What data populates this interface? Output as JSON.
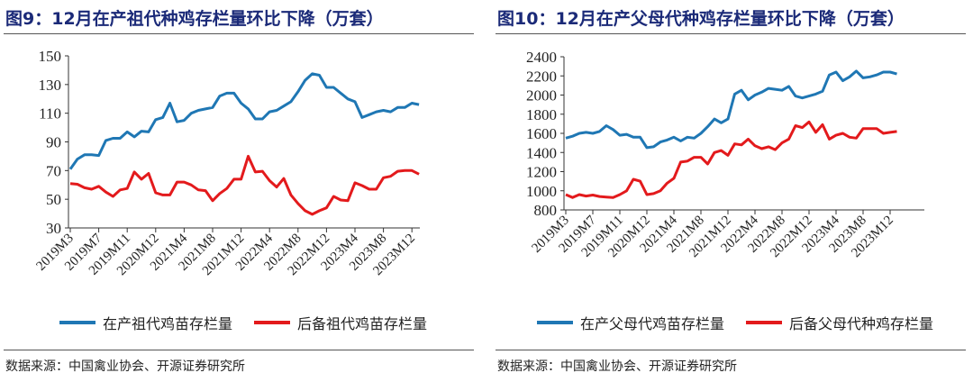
{
  "chart_data": [
    {
      "type": "line",
      "title": "图9：12月在产祖代种鸡存栏量环比下降（万套）",
      "source": "数据来源：中国禽业协会、开源证券研究所",
      "ylim": [
        30,
        150
      ],
      "yticks": [
        30,
        50,
        70,
        90,
        110,
        130,
        150
      ],
      "xtick_labels": [
        "2019M3",
        "2019M7",
        "2019M11",
        "2020M12",
        "2021M4",
        "2021M8",
        "2021M12",
        "2022M4",
        "2022M8",
        "2022M12",
        "2023M4",
        "2023M8",
        "2023M12"
      ],
      "legend_position": "bottom",
      "series": [
        {
          "name": "在产祖代鸡苗存栏量",
          "color": "#1f77b4",
          "values": [
            71,
            78,
            81,
            81,
            80.5,
            91,
            92.5,
            92.5,
            97,
            93.5,
            97.5,
            97,
            105.5,
            107,
            117,
            104,
            105,
            110,
            112,
            113,
            114,
            122,
            124,
            124,
            117,
            113,
            106,
            106,
            111,
            112,
            115,
            118,
            125,
            133,
            137.5,
            136.5,
            128,
            128,
            124,
            120,
            118,
            107,
            109,
            111,
            112,
            111,
            114,
            114,
            117,
            116
          ]
        },
        {
          "name": "后备祖代鸡苗存栏量",
          "color": "#e31a1c",
          "values": [
            61,
            60.5,
            58,
            57,
            59,
            55,
            52,
            56.5,
            57.5,
            69,
            64,
            68,
            54.5,
            53,
            53,
            62,
            62,
            60,
            56.5,
            56,
            49,
            54,
            57.5,
            64,
            64,
            80,
            69,
            69.5,
            63,
            58.5,
            64.5,
            53,
            47,
            42,
            39.5,
            42,
            44,
            52,
            49.5,
            49,
            61.5,
            59.5,
            57,
            57,
            65,
            66,
            69.5,
            70,
            70,
            67.5
          ]
        }
      ]
    },
    {
      "type": "line",
      "title": "图10：12月在产父母代种鸡存栏量环比下降（万套）",
      "source": "数据来源：中国禽业协会、开源证券研究所",
      "ylim": [
        800,
        2400
      ],
      "yticks": [
        800,
        1000,
        1200,
        1400,
        1600,
        1800,
        2000,
        2200,
        2400
      ],
      "xtick_labels": [
        "2019M3",
        "2019M7",
        "2019M11",
        "2020M12",
        "2021M4",
        "2021M8",
        "2021M12",
        "2022M4",
        "2022M8",
        "2022M12",
        "2023M4",
        "2023M8",
        "2023M12"
      ],
      "legend_position": "bottom",
      "series": [
        {
          "name": "在产父母代鸡苗存栏量",
          "color": "#1f77b4",
          "values": [
            1550,
            1570,
            1600,
            1610,
            1600,
            1620,
            1680,
            1640,
            1580,
            1590,
            1560,
            1560,
            1450,
            1460,
            1510,
            1530,
            1560,
            1520,
            1560,
            1550,
            1600,
            1670,
            1750,
            1710,
            1750,
            2010,
            2050,
            1950,
            2000,
            2030,
            2070,
            2060,
            2050,
            2090,
            1990,
            1970,
            1990,
            2010,
            2040,
            2210,
            2240,
            2150,
            2190,
            2250,
            2180,
            2190,
            2210,
            2240,
            2240,
            2220
          ]
        },
        {
          "name": "后备父母代种鸡存栏量",
          "color": "#e31a1c",
          "values": [
            960,
            930,
            960,
            945,
            955,
            940,
            935,
            930,
            960,
            1000,
            1120,
            1100,
            960,
            970,
            1000,
            1080,
            1130,
            1300,
            1310,
            1350,
            1350,
            1280,
            1400,
            1420,
            1370,
            1490,
            1480,
            1540,
            1470,
            1440,
            1460,
            1430,
            1500,
            1540,
            1680,
            1660,
            1720,
            1610,
            1690,
            1540,
            1580,
            1600,
            1560,
            1550,
            1650,
            1650,
            1650,
            1600,
            1610,
            1620
          ]
        }
      ]
    }
  ]
}
